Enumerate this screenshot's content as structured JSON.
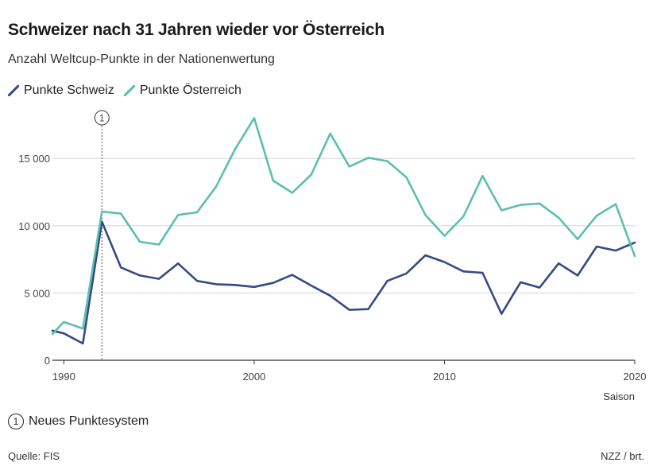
{
  "header": {
    "title": "Schweizer nach 31 Jahren wieder vor Österreich",
    "subtitle": "Anzahl Weltcup-Punkte in der Nationenwertung"
  },
  "footnote": {
    "marker": "1",
    "text": "Neues Punktesystem"
  },
  "footer": {
    "source": "Quelle: FIS",
    "credit": "NZZ / brt."
  },
  "colors": {
    "schweiz": "#344a86",
    "oesterreich": "#5bbfae",
    "grid": "#d6d6d6",
    "axis": "#333333"
  },
  "chart_data": {
    "type": "line",
    "xlabel": "Saison",
    "ylabel": "",
    "xlim": [
      1989.4,
      2020
    ],
    "ylim": [
      0,
      18500
    ],
    "x_ticks": [
      1990,
      2000,
      2010,
      2020
    ],
    "x_tick_labels": [
      "1990",
      "2000",
      "2010",
      "2020"
    ],
    "y_ticks": [
      0,
      5000,
      10000,
      15000
    ],
    "y_tick_labels": [
      "0",
      "5 000",
      "10 000",
      "15 000"
    ],
    "grid": "horizontal",
    "legend_position": "top-left",
    "annotations": [
      {
        "x": 1992,
        "label": "1",
        "type": "vertical-dashed-line"
      }
    ],
    "x": [
      1989.4,
      1990,
      1991,
      1992,
      1993,
      1994,
      1995,
      1996,
      1997,
      1998,
      1999,
      2000,
      2001,
      2002,
      2003,
      2004,
      2005,
      2006,
      2007,
      2008,
      2009,
      2010,
      2011,
      2012,
      2013,
      2014,
      2015,
      2016,
      2017,
      2018,
      2019,
      2020
    ],
    "series": [
      {
        "name": "Punkte Schweiz",
        "values": [
          2200,
          2000,
          1250,
          10300,
          6900,
          6300,
          6050,
          7200,
          5900,
          5650,
          5600,
          5450,
          5750,
          6350,
          5550,
          4800,
          3750,
          3800,
          5900,
          6450,
          7800,
          7300,
          6600,
          6500,
          3450,
          5800,
          5400,
          7200,
          6300,
          8450,
          8150,
          8750
        ]
      },
      {
        "name": "Punkte Österreich",
        "values": [
          1950,
          2850,
          2350,
          11050,
          10900,
          8800,
          8600,
          10800,
          11000,
          12900,
          15700,
          18000,
          13350,
          12450,
          13800,
          16850,
          14400,
          15050,
          14800,
          13600,
          10800,
          9250,
          10700,
          13700,
          11150,
          11550,
          11650,
          10600,
          9000,
          10750,
          11600,
          7750
        ]
      }
    ]
  }
}
